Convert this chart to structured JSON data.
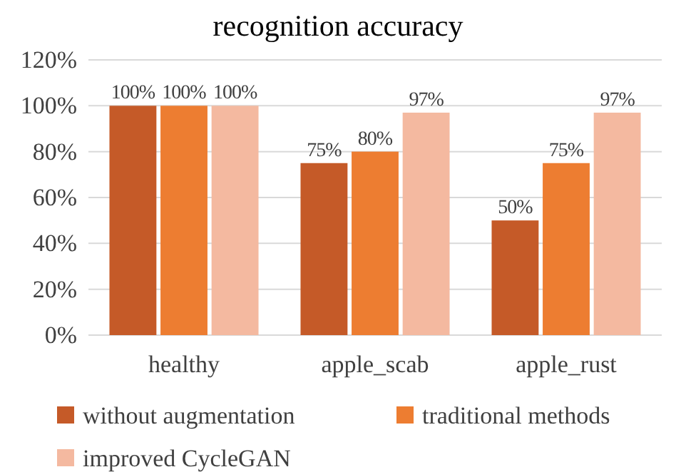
{
  "chart_data": {
    "type": "bar",
    "title": "recognition accuracy",
    "categories": [
      "healthy",
      "apple_scab",
      "apple_rust"
    ],
    "series": [
      {
        "name": "without augmentation",
        "color": "#c55a28",
        "values": [
          100,
          75,
          50
        ],
        "value_labels": [
          "100%",
          "75%",
          "50%"
        ]
      },
      {
        "name": "traditional methods",
        "color": "#ed7d31",
        "values": [
          100,
          80,
          75
        ],
        "value_labels": [
          "100%",
          "80%",
          "75%"
        ]
      },
      {
        "name": "improved CycleGAN",
        "color": "#f4b9a0",
        "values": [
          100,
          97,
          97
        ],
        "value_labels": [
          "100%",
          "97%",
          "97%"
        ]
      }
    ],
    "ylim": [
      0,
      120
    ],
    "yticks": [
      {
        "value": 0,
        "label": "0%"
      },
      {
        "value": 20,
        "label": "20%"
      },
      {
        "value": 40,
        "label": "40%"
      },
      {
        "value": 60,
        "label": "60%"
      },
      {
        "value": 80,
        "label": "80%"
      },
      {
        "value": 100,
        "label": "100%"
      },
      {
        "value": 120,
        "label": "120%"
      }
    ],
    "grid": "y",
    "legend": "bottom"
  }
}
